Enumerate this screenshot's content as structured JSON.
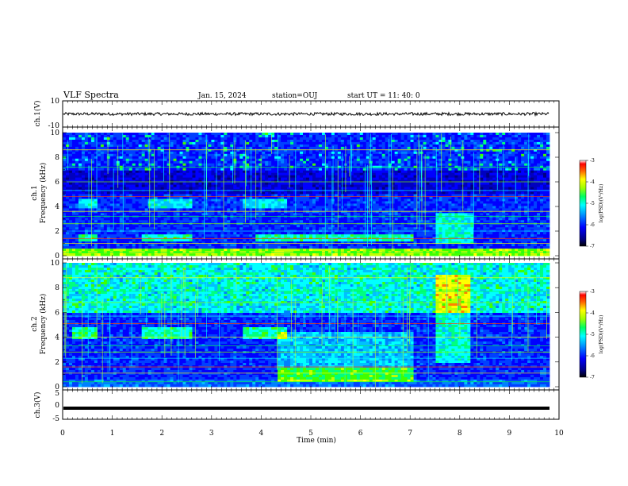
{
  "header": {
    "title": "VLF Spectra",
    "date": "Jan. 15, 2024",
    "station": "station=OUJ",
    "start": "start UT =  11: 40: 0"
  },
  "chart_data": [
    {
      "type": "line",
      "name": "ch1-waveform",
      "ylabel": "ch.1(V)",
      "ylim": [
        -10,
        10
      ],
      "yticks": [
        "10",
        "-10"
      ],
      "x": [
        0,
        10
      ],
      "description_values": {
        "mean_level": 0,
        "amplitude_approx": 1
      }
    },
    {
      "type": "heatmap",
      "name": "ch1-spectrogram",
      "ylabel_lines": [
        "ch.1",
        "Frequency (kHz)"
      ],
      "ylim": [
        0,
        10
      ],
      "yticks": [
        "0",
        "2",
        "4",
        "6",
        "8",
        "10"
      ],
      "xlim": [
        0,
        10
      ],
      "colorbar": {
        "label": "log(PSD)(V²/Hz)",
        "range": [
          -7,
          -3
        ],
        "ticks": [
          "-3",
          "-4",
          "-5",
          "-6",
          "-7"
        ]
      }
    },
    {
      "type": "heatmap",
      "name": "ch2-spectrogram",
      "ylabel_lines": [
        "ch.2",
        "Frequency (kHz)"
      ],
      "ylim": [
        0,
        10
      ],
      "yticks": [
        "0",
        "2",
        "4",
        "6",
        "8",
        "10"
      ],
      "xlim": [
        0,
        10
      ],
      "colorbar": {
        "label": "log(PSD)(V²/Hz)",
        "range": [
          -7,
          -3
        ],
        "ticks": [
          "-3",
          "-4",
          "-5",
          "-6",
          "-7"
        ]
      }
    },
    {
      "type": "line",
      "name": "ch3-waveform",
      "ylabel": "ch.3(V)",
      "ylim": [
        -5,
        5
      ],
      "yticks": [
        "5",
        "0",
        "-5"
      ],
      "x": [
        0,
        10
      ],
      "y": [
        -1.2,
        -1.2
      ]
    }
  ],
  "xaxis": {
    "label": "Time (min)",
    "ticks": [
      "0",
      "1",
      "2",
      "3",
      "4",
      "5",
      "6",
      "7",
      "8",
      "9",
      "10"
    ],
    "range": [
      0,
      10
    ]
  },
  "colors": {
    "colormap": [
      "#000080",
      "#0000ff",
      "#00a0ff",
      "#00ffff",
      "#00ff80",
      "#80ff00",
      "#ffff00",
      "#ff8000",
      "#ff0000",
      "#ffffff"
    ]
  }
}
